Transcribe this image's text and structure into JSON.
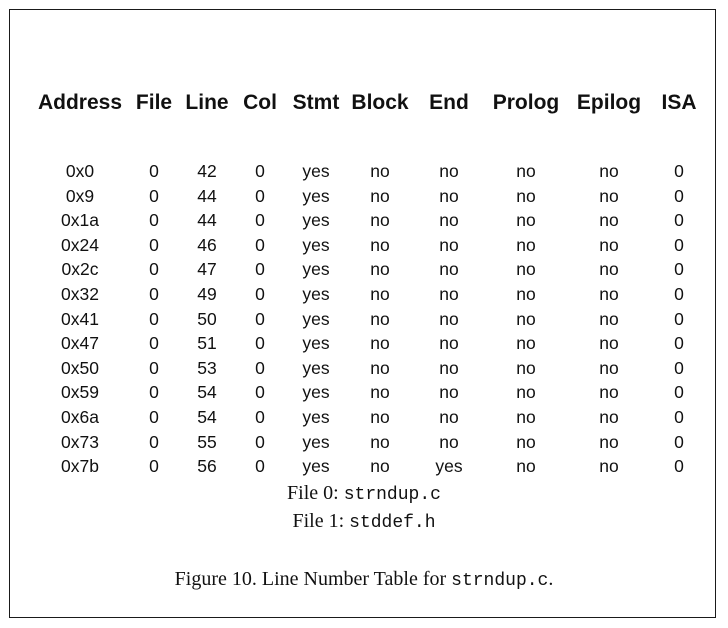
{
  "table": {
    "columns": [
      "Address",
      "File",
      "Line",
      "Col",
      "Stmt",
      "Block",
      "End",
      "Prolog",
      "Epilog",
      "ISA"
    ],
    "rows": [
      [
        "0x0",
        "0",
        "42",
        "0",
        "yes",
        "no",
        "no",
        "no",
        "no",
        "0"
      ],
      [
        "0x9",
        "0",
        "44",
        "0",
        "yes",
        "no",
        "no",
        "no",
        "no",
        "0"
      ],
      [
        "0x1a",
        "0",
        "44",
        "0",
        "yes",
        "no",
        "no",
        "no",
        "no",
        "0"
      ],
      [
        "0x24",
        "0",
        "46",
        "0",
        "yes",
        "no",
        "no",
        "no",
        "no",
        "0"
      ],
      [
        "0x2c",
        "0",
        "47",
        "0",
        "yes",
        "no",
        "no",
        "no",
        "no",
        "0"
      ],
      [
        "0x32",
        "0",
        "49",
        "0",
        "yes",
        "no",
        "no",
        "no",
        "no",
        "0"
      ],
      [
        "0x41",
        "0",
        "50",
        "0",
        "yes",
        "no",
        "no",
        "no",
        "no",
        "0"
      ],
      [
        "0x47",
        "0",
        "51",
        "0",
        "yes",
        "no",
        "no",
        "no",
        "no",
        "0"
      ],
      [
        "0x50",
        "0",
        "53",
        "0",
        "yes",
        "no",
        "no",
        "no",
        "no",
        "0"
      ],
      [
        "0x59",
        "0",
        "54",
        "0",
        "yes",
        "no",
        "no",
        "no",
        "no",
        "0"
      ],
      [
        "0x6a",
        "0",
        "54",
        "0",
        "yes",
        "no",
        "no",
        "no",
        "no",
        "0"
      ],
      [
        "0x73",
        "0",
        "55",
        "0",
        "yes",
        "no",
        "no",
        "no",
        "no",
        "0"
      ],
      [
        "0x7b",
        "0",
        "56",
        "0",
        "yes",
        "no",
        "yes",
        "no",
        "no",
        "0"
      ]
    ]
  },
  "files": [
    {
      "label": "File 0:",
      "name": "strndup.c"
    },
    {
      "label": "File 1:",
      "name": "stddef.h"
    }
  ],
  "caption": {
    "prefix": "Figure 10.  Line Number Table for",
    "code": "strndup.c",
    "suffix": "."
  }
}
